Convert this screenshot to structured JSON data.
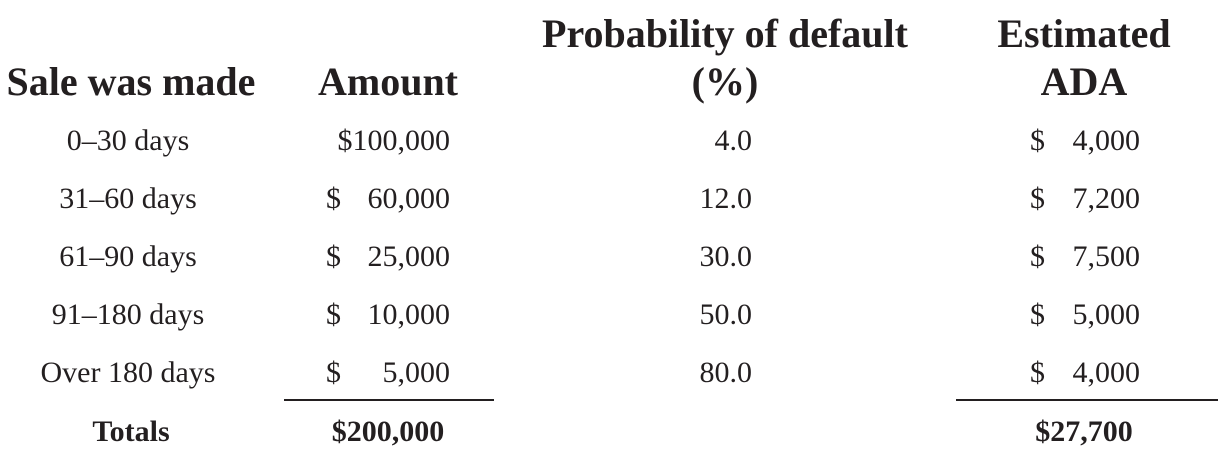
{
  "table": {
    "headers": {
      "sale": [
        "Sale was made"
      ],
      "amount": [
        "Amount"
      ],
      "prob": [
        "Probability of default",
        "(%)"
      ],
      "ada": [
        "Estimated",
        "ADA"
      ]
    },
    "rows": [
      {
        "sale": "0–30 days",
        "amount_cur": "$100,000",
        "amount_num": "",
        "prob": "4.0",
        "ada_cur": "$",
        "ada_num": "4,000"
      },
      {
        "sale": "31–60 days",
        "amount_cur": "$",
        "amount_num": "60,000",
        "prob": "12.0",
        "ada_cur": "$",
        "ada_num": "7,200"
      },
      {
        "sale": "61–90 days",
        "amount_cur": "$",
        "amount_num": "25,000",
        "prob": "30.0",
        "ada_cur": "$",
        "ada_num": "7,500"
      },
      {
        "sale": "91–180 days",
        "amount_cur": "$",
        "amount_num": "10,000",
        "prob": "50.0",
        "ada_cur": "$",
        "ada_num": "5,000"
      },
      {
        "sale": "Over 180 days",
        "amount_cur": "$",
        "amount_num": "5,000",
        "prob": "80.0",
        "ada_cur": "$",
        "ada_num": "4,000"
      }
    ],
    "totals": {
      "label": "Totals",
      "amount": "$200,000",
      "ada": "$27,700"
    }
  }
}
